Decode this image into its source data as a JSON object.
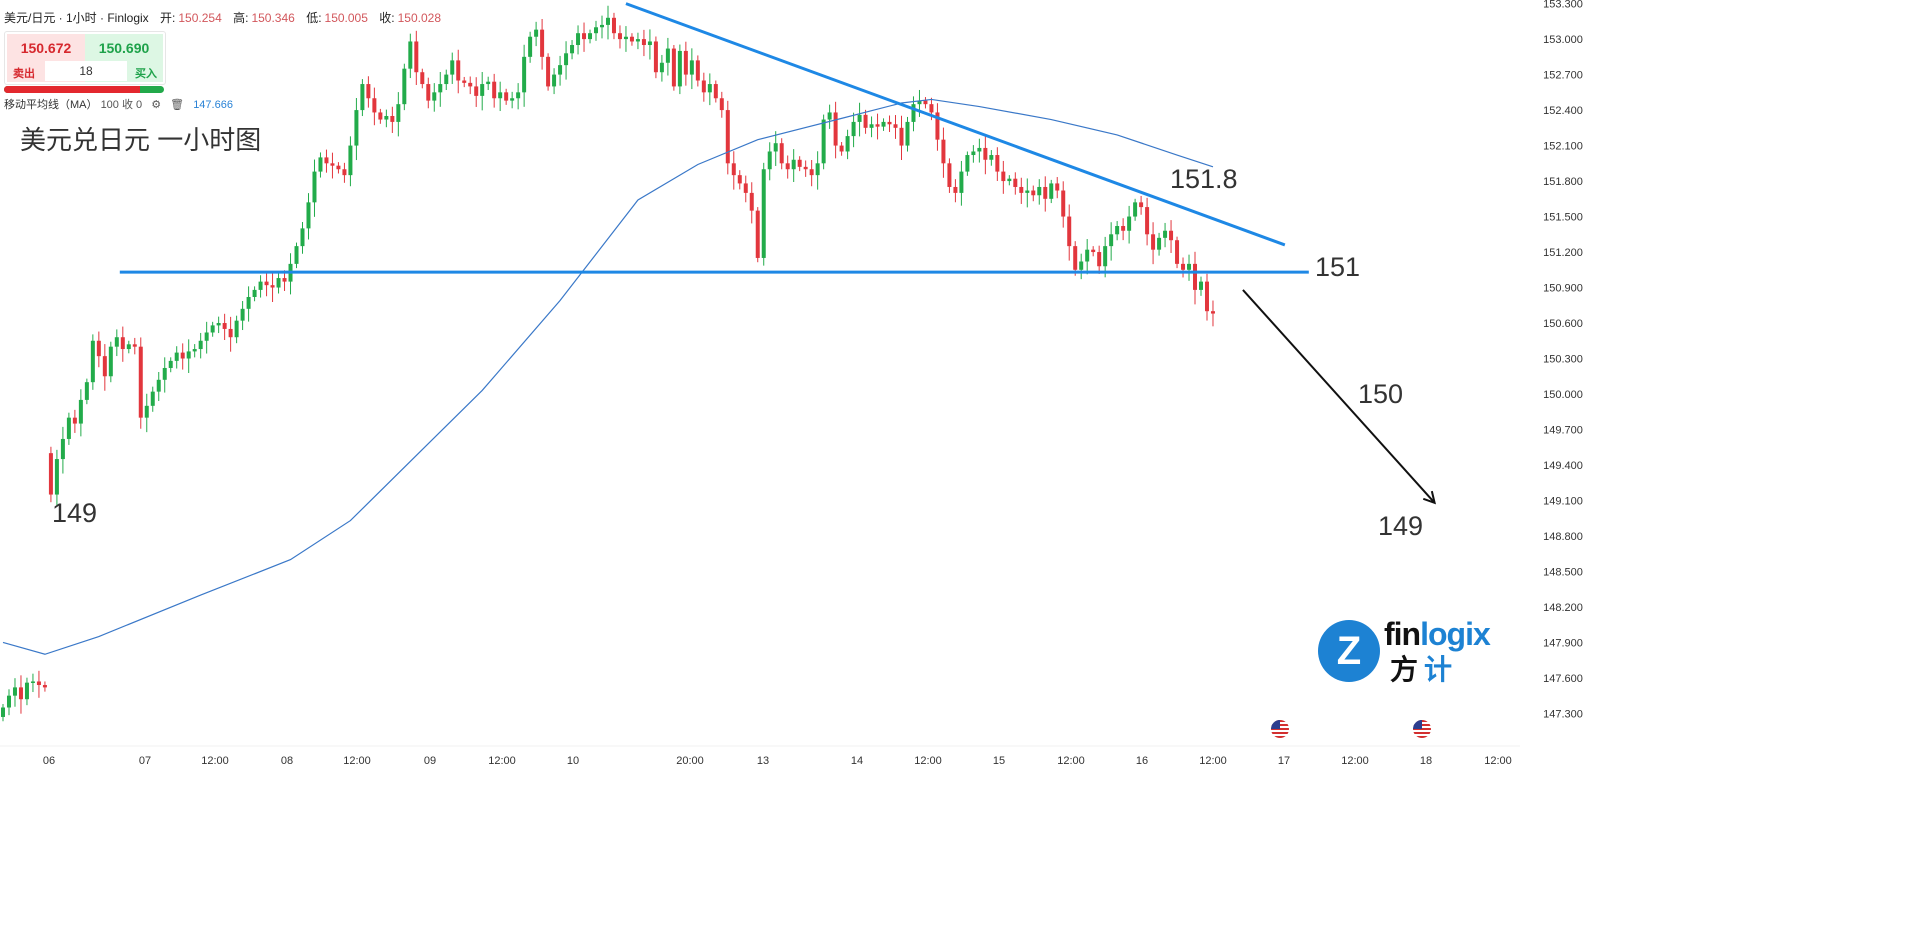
{
  "header": {
    "symbol": "美元/日元 · 1小时 · Finlogix",
    "open_label": "开:",
    "open": "150.254",
    "high_label": "高:",
    "high": "150.346",
    "low_label": "低:",
    "low": "150.005",
    "close_label": "收:",
    "close": "150.028"
  },
  "trade_widget": {
    "sell_price": "150.672",
    "buy_price": "150.690",
    "sell_label": "卖出",
    "buy_label": "买入",
    "quantity": "18",
    "sell_ratio_percent": 85
  },
  "indicator": {
    "name": "移动平均线（MA）",
    "params": "100 收 0",
    "value": "147.666",
    "settings_icon": "gear-icon",
    "delete_icon": "trash-icon"
  },
  "title": "美元兑日元 一小时图",
  "logo": {
    "part1": "fin",
    "part2": "logix",
    "cn1": "方",
    "cn2": "计",
    "mark": "Z"
  },
  "colors": {
    "up": "#22ab4a",
    "down": "#e2363d",
    "ma": "#3a78c8",
    "drawing": "#1e88e5",
    "arrow": "#111111"
  },
  "chart_data": {
    "type": "candlestick",
    "title": "美元兑日元 一小时图",
    "ylim": [
      147.1,
      153.35
    ],
    "y_ticks": [
      "153.300",
      "153.000",
      "152.700",
      "152.400",
      "152.100",
      "151.800",
      "151.500",
      "151.200",
      "150.900",
      "150.600",
      "150.300",
      "150.000",
      "149.700",
      "149.400",
      "149.100",
      "148.800",
      "148.500",
      "148.200",
      "147.900",
      "147.600",
      "147.300"
    ],
    "x_ticks": [
      "06",
      "07",
      "12:00",
      "08",
      "12:00",
      "09",
      "12:00",
      "10",
      "20:00",
      "13",
      "14",
      "12:00",
      "15",
      "12:00",
      "16",
      "12:00",
      "17",
      "12:00",
      "18",
      "12:00"
    ],
    "session_open_override": {
      "index": 8,
      "open": 149.5
    },
    "closes": [
      147.35,
      147.45,
      147.52,
      147.42,
      147.56,
      147.57,
      147.54,
      147.52,
      149.15,
      149.45,
      149.62,
      149.8,
      149.75,
      149.95,
      150.1,
      150.45,
      150.32,
      150.15,
      150.4,
      150.48,
      150.38,
      150.42,
      150.4,
      149.8,
      149.9,
      150.02,
      150.12,
      150.22,
      150.28,
      150.35,
      150.3,
      150.36,
      150.38,
      150.45,
      150.52,
      150.58,
      150.6,
      150.55,
      150.48,
      150.62,
      150.72,
      150.82,
      150.88,
      150.95,
      150.92,
      150.9,
      150.98,
      150.95,
      151.1,
      151.25,
      151.4,
      151.62,
      151.88,
      152.0,
      151.95,
      151.93,
      151.9,
      151.85,
      152.1,
      152.4,
      152.62,
      152.5,
      152.38,
      152.32,
      152.35,
      152.3,
      152.45,
      152.75,
      152.98,
      152.72,
      152.62,
      152.48,
      152.55,
      152.62,
      152.7,
      152.82,
      152.65,
      152.63,
      152.6,
      152.52,
      152.62,
      152.64,
      152.5,
      152.55,
      152.48,
      152.5,
      152.55,
      152.85,
      153.02,
      153.08,
      152.85,
      152.6,
      152.7,
      152.78,
      152.88,
      152.95,
      153.05,
      153.0,
      153.05,
      153.1,
      153.12,
      153.18,
      153.05,
      153.0,
      153.02,
      152.98,
      153.0,
      152.95,
      152.98,
      152.72,
      152.8,
      152.92,
      152.6,
      152.9,
      152.7,
      152.82,
      152.65,
      152.55,
      152.62,
      152.5,
      152.4,
      151.95,
      151.85,
      151.78,
      151.7,
      151.55,
      151.15,
      151.9,
      152.05,
      152.12,
      151.95,
      151.9,
      151.98,
      151.92,
      151.9,
      151.85,
      151.95,
      152.32,
      152.38,
      152.1,
      152.05,
      152.18,
      152.3,
      152.36,
      152.25,
      152.28,
      152.26,
      152.3,
      152.28,
      152.25,
      152.1,
      152.3,
      152.45,
      152.48,
      152.45,
      152.38,
      152.15,
      151.95,
      151.75,
      151.7,
      151.88,
      152.02,
      152.05,
      152.08,
      151.98,
      152.02,
      151.88,
      151.8,
      151.82,
      151.75,
      151.7,
      151.72,
      151.68,
      151.75,
      151.65,
      151.78,
      151.72,
      151.5,
      151.25,
      151.05,
      151.12,
      151.22,
      151.2,
      151.08,
      151.25,
      151.35,
      151.42,
      151.38,
      151.5,
      151.62,
      151.58,
      151.35,
      151.22,
      151.32,
      151.38,
      151.3,
      151.1,
      151.05,
      151.1,
      150.88,
      150.95,
      150.7,
      150.68
    ],
    "ma100": [
      [
        0,
        147.9
      ],
      [
        7,
        147.8
      ],
      [
        16,
        147.95
      ],
      [
        33,
        148.3
      ],
      [
        48,
        148.6
      ],
      [
        58,
        148.93
      ],
      [
        70,
        149.53
      ],
      [
        80,
        150.03
      ],
      [
        93,
        150.79
      ],
      [
        106,
        151.64
      ],
      [
        116,
        151.94
      ],
      [
        126,
        152.15
      ],
      [
        140,
        152.33
      ],
      [
        150,
        152.46
      ],
      [
        155,
        152.49
      ],
      [
        163,
        152.43
      ],
      [
        175,
        152.32
      ],
      [
        186,
        152.19
      ],
      [
        196,
        152.02
      ],
      [
        202,
        151.92
      ]
    ],
    "drawings": {
      "support": {
        "price": 151.03,
        "from_index": 19.5,
        "to_index": 218
      },
      "trendline": {
        "from": [
          104,
          153.3
        ],
        "to": [
          214,
          151.26
        ]
      },
      "arrow": {
        "from": [
          207,
          150.88
        ],
        "to": [
          239,
          149.08
        ]
      }
    },
    "annotations": [
      "149",
      "151.8",
      "151",
      "150",
      "149"
    ]
  }
}
